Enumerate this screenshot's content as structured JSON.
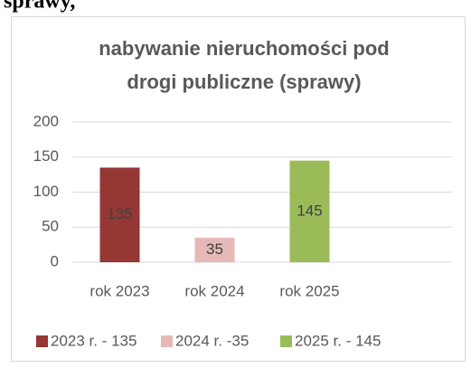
{
  "header": {
    "text": "sprawy,"
  },
  "chart_data": {
    "type": "bar",
    "title": [
      "nabywanie nieruchomości pod",
      "drogi publiczne (sprawy)"
    ],
    "categories": [
      "rok 2023",
      "rok 2024",
      "rok 2025",
      null
    ],
    "values": [
      135,
      35,
      145,
      null
    ],
    "colors": [
      "#953735",
      "#e6b9b8",
      "#9bbb59",
      null
    ],
    "legend": [
      "2023 r. - 135",
      "2024 r. -35",
      "2025 r. - 145"
    ],
    "ylim": [
      0,
      200
    ],
    "yticks": [
      0,
      50,
      100,
      150,
      200
    ],
    "grid": true
  }
}
